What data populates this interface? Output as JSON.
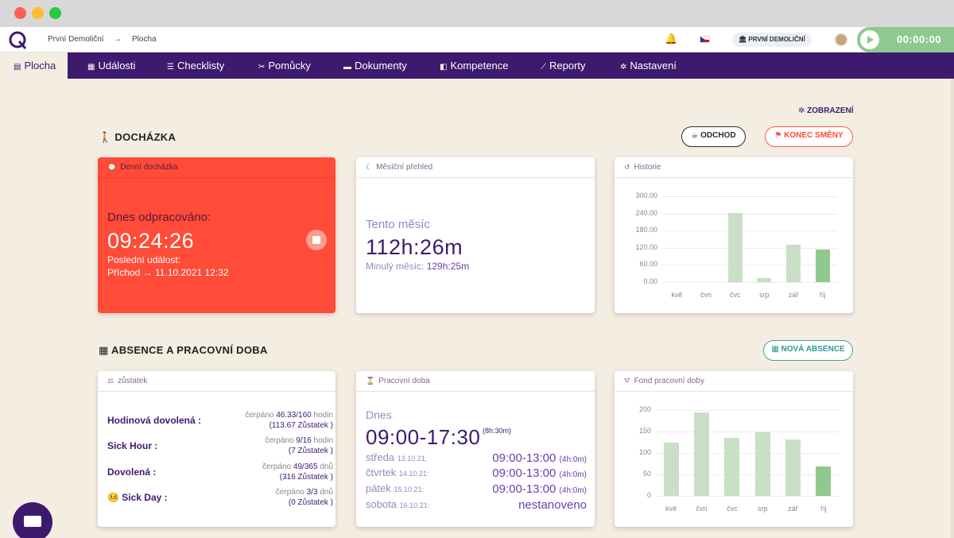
{
  "header": {
    "breadcrumb_company": "První Demoliční",
    "breadcrumb_arrow": "→",
    "breadcrumb_page": "Plocha",
    "company_badge": "PRVNÍ DEMOLIČNÍ",
    "timer": "00:00:00"
  },
  "nav": {
    "items": [
      {
        "label": "Plocha",
        "icon": "▤"
      },
      {
        "label": "Události",
        "icon": "▦"
      },
      {
        "label": "Checklisty",
        "icon": "☰"
      },
      {
        "label": "Pomůcky",
        "icon": "✂"
      },
      {
        "label": "Dokumenty",
        "icon": "▬"
      },
      {
        "label": "Kompetence",
        "icon": "◧"
      },
      {
        "label": "Reporty",
        "icon": "⟋"
      },
      {
        "label": "Nastavení",
        "icon": "✲"
      }
    ]
  },
  "display_link": "ZOBRAZENÍ",
  "attendance": {
    "title": "DOCHÁZKA",
    "leave_btn": "ODCHOD",
    "end_shift_btn": "KONEC SMĚNY",
    "daily": {
      "head": "Denní docházka",
      "worked_label": "Dnes odpracováno:",
      "worked_value": "09:24:26",
      "last_event_label": "Poslední událost:",
      "last_event_value": "Příchod → 11.10.2021 12:32"
    },
    "monthly": {
      "head": "Měsíční přehled",
      "label": "Tento měsíc",
      "value": "112h:26m",
      "prev_label": "Minulý měsíc:",
      "prev_value": "129h:25m"
    },
    "history": {
      "head": "Historie"
    }
  },
  "absence": {
    "title": "ABSENCE A PRACOVNÍ DOBA",
    "new_btn": "NOVÁ ABSENCE",
    "balance": {
      "head": "zůstatek",
      "rows": [
        {
          "label": "Hodinová dovolená :",
          "used": "čerpáno",
          "used_val": "46.33/160",
          "unit": "hodin",
          "remaining": "(113.67 Zůstatek )"
        },
        {
          "label": "Sick Hour :",
          "used": "čerpáno",
          "used_val": "9/16",
          "unit": "hodin",
          "remaining": "(7 Zůstatek )"
        },
        {
          "label": "Dovolená :",
          "used": "čerpáno",
          "used_val": "49/365",
          "unit": "dnů",
          "remaining": "(316 Zůstatek )"
        },
        {
          "label": "🤒 Sick Day :",
          "used": "čerpáno",
          "used_val": "3/3",
          "unit": "dnů",
          "remaining": "(0 Zůstatek )"
        }
      ]
    },
    "workhours": {
      "head": "Pracovní doba",
      "today_label": "Dnes",
      "today_value": "09:00-17:30",
      "today_len": "(8h:30m)",
      "days": [
        {
          "day": "středa",
          "date": "13.10.21:",
          "time": "09:00-13:00",
          "len": "(4h:0m)"
        },
        {
          "day": "čtvrtek",
          "date": "14.10.21:",
          "time": "09:00-13:00",
          "len": "(4h:0m)"
        },
        {
          "day": "pátek",
          "date": "15.10.21:",
          "time": "09:00-13:00",
          "len": "(4h:0m)"
        },
        {
          "day": "sobota",
          "date": "16.10.21:",
          "time": "nestanoveno",
          "len": ""
        }
      ]
    },
    "fund": {
      "head": "Fond pracovní doby"
    }
  },
  "chart_data": [
    {
      "type": "bar",
      "categories": [
        "kvě",
        "čvn",
        "čvc",
        "srp",
        "zář",
        "říj"
      ],
      "values": [
        0,
        0,
        243,
        15,
        130,
        113
      ],
      "ylim": [
        0,
        300
      ],
      "yticks": [
        "300.00",
        "240.00",
        "180.00",
        "120.00",
        "60.00",
        "0.00"
      ],
      "highlight_index": 5,
      "colors": {
        "bar": "#c9dfc6",
        "highlight": "#8fc98f"
      }
    },
    {
      "type": "bar",
      "categories": [
        "kvě",
        "čvn",
        "čvc",
        "srp",
        "zář",
        "říj"
      ],
      "values": [
        125,
        195,
        135,
        148,
        132,
        68
      ],
      "ylim": [
        0,
        200
      ],
      "yticks": [
        "200",
        "150",
        "100",
        "50",
        "0"
      ],
      "highlight_index": 5,
      "colors": {
        "bar": "#c9dfc6",
        "highlight": "#8fc98f"
      }
    }
  ]
}
